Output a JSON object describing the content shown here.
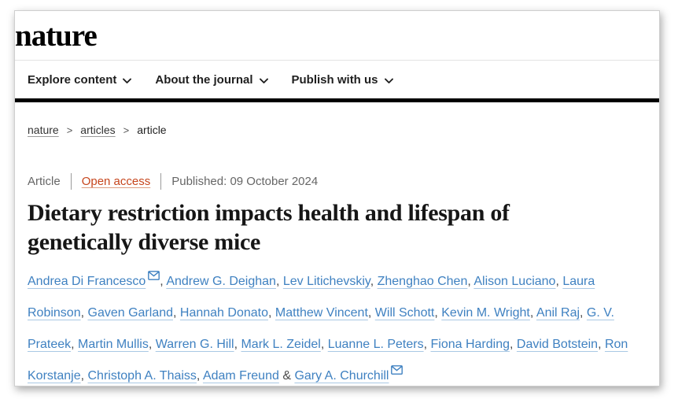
{
  "brand": {
    "logo_text": "nature"
  },
  "nav": {
    "items": [
      {
        "id": "explore-content",
        "label": "Explore content"
      },
      {
        "id": "about-the-journal",
        "label": "About the journal"
      },
      {
        "id": "publish-with-us",
        "label": "Publish with us"
      }
    ]
  },
  "breadcrumb": {
    "separator": ">",
    "items": [
      {
        "id": "nature",
        "label": "nature",
        "link": true
      },
      {
        "id": "articles",
        "label": "articles",
        "link": true
      },
      {
        "id": "article",
        "label": "article",
        "link": false
      }
    ]
  },
  "article_meta": {
    "type_label": "Article",
    "access_label": "Open access",
    "published_label": "Published: 09 October 2024"
  },
  "title": "Dietary restriction impacts health and lifespan of genetically diverse mice",
  "authors": {
    "separator": ", ",
    "last_separator": " & ",
    "list": [
      {
        "name": "Andrea Di Francesco",
        "email_icon": true
      },
      {
        "name": "Andrew G. Deighan",
        "email_icon": false
      },
      {
        "name": "Lev Litichevskiy",
        "email_icon": false
      },
      {
        "name": "Zhenghao Chen",
        "email_icon": false
      },
      {
        "name": "Alison Luciano",
        "email_icon": false
      },
      {
        "name": "Laura Robinson",
        "email_icon": false
      },
      {
        "name": "Gaven Garland",
        "email_icon": false
      },
      {
        "name": "Hannah Donato",
        "email_icon": false
      },
      {
        "name": "Matthew Vincent",
        "email_icon": false
      },
      {
        "name": "Will Schott",
        "email_icon": false
      },
      {
        "name": "Kevin M. Wright",
        "email_icon": false
      },
      {
        "name": "Anil Raj",
        "email_icon": false
      },
      {
        "name": "G. V. Prateek",
        "email_icon": false
      },
      {
        "name": "Martin Mullis",
        "email_icon": false
      },
      {
        "name": "Warren G. Hill",
        "email_icon": false
      },
      {
        "name": "Mark L. Zeidel",
        "email_icon": false
      },
      {
        "name": "Luanne L. Peters",
        "email_icon": false
      },
      {
        "name": "Fiona Harding",
        "email_icon": false
      },
      {
        "name": "David Botstein",
        "email_icon": false
      },
      {
        "name": "Ron Korstanje",
        "email_icon": false
      },
      {
        "name": "Christoph A. Thaiss",
        "email_icon": false
      },
      {
        "name": "Adam Freund",
        "email_icon": false
      },
      {
        "name": "Gary A. Churchill",
        "email_icon": true
      }
    ]
  },
  "colors": {
    "link_blue": "#3f81c1",
    "open_access_orange": "#c6451c",
    "meta_gray": "#666666",
    "nav_text": "#1f1f1f",
    "header_rule": "#000000"
  }
}
